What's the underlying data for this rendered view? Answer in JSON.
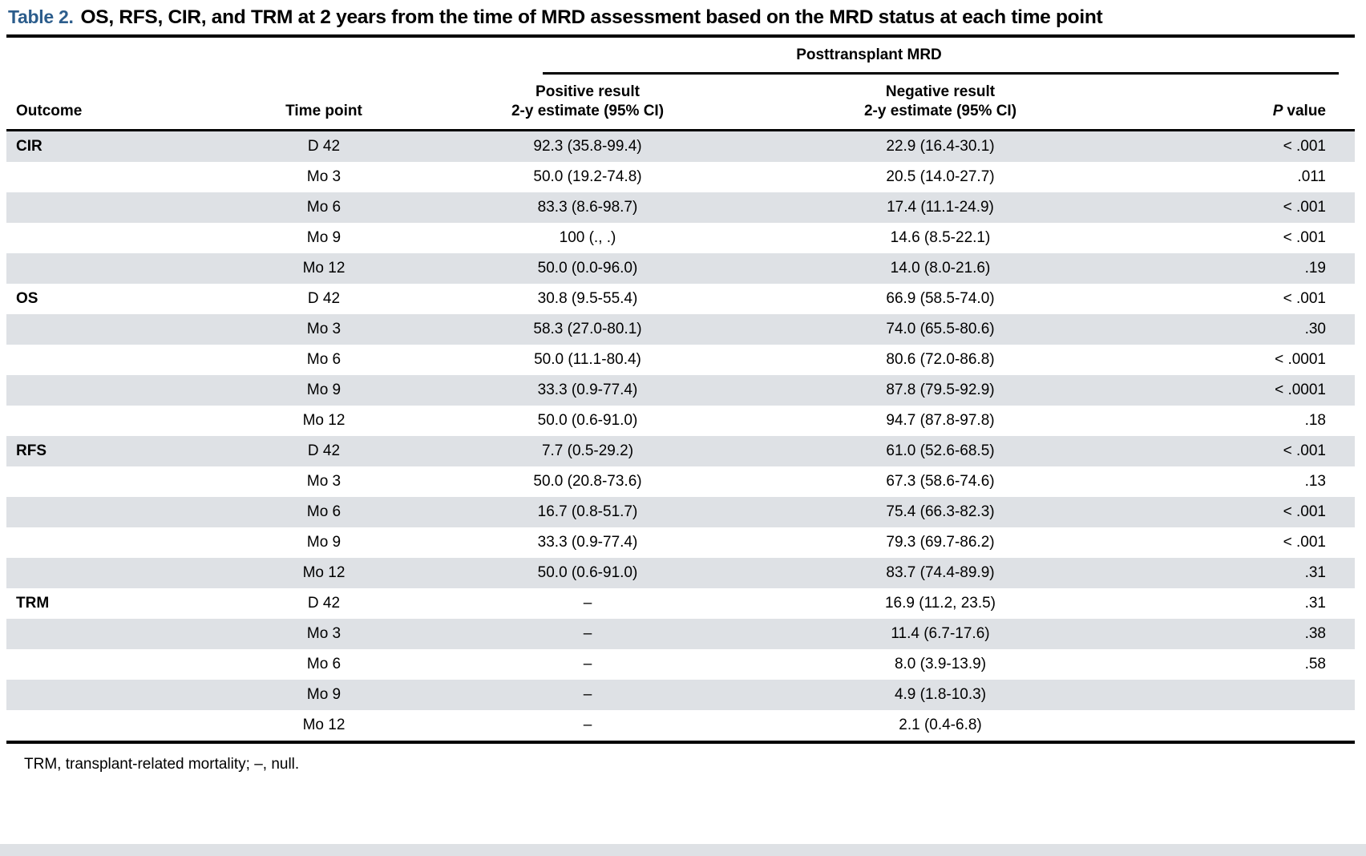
{
  "page": {
    "label": "Table 2.",
    "title": "OS, RFS, CIR, and TRM at 2 years from the time of MRD assessment based on the MRD status at each time point",
    "spanner": "Posttransplant MRD",
    "headers": {
      "outcome": "Outcome",
      "time_point": "Time point",
      "positive_line1": "Positive result",
      "positive_line2": "2-y estimate (95% CI)",
      "negative_line1": "Negative result",
      "negative_line2": "2-y estimate (95% CI)",
      "p_symbol": "P",
      "p_word": "value"
    },
    "rows": [
      {
        "outcome": "CIR",
        "time": "D 42",
        "positive": "92.3 (35.8-99.4)",
        "negative": "22.9 (16.4-30.1)",
        "p": "< .001"
      },
      {
        "outcome": "",
        "time": "Mo 3",
        "positive": "50.0 (19.2-74.8)",
        "negative": "20.5 (14.0-27.7)",
        "p": ".011"
      },
      {
        "outcome": "",
        "time": "Mo 6",
        "positive": "83.3 (8.6-98.7)",
        "negative": "17.4 (11.1-24.9)",
        "p": "< .001"
      },
      {
        "outcome": "",
        "time": "Mo 9",
        "positive": "100 (., .)",
        "negative": "14.6 (8.5-22.1)",
        "p": "< .001"
      },
      {
        "outcome": "",
        "time": "Mo 12",
        "positive": "50.0 (0.0-96.0)",
        "negative": "14.0 (8.0-21.6)",
        "p": ".19"
      },
      {
        "outcome": "OS",
        "time": "D 42",
        "positive": "30.8 (9.5-55.4)",
        "negative": "66.9 (58.5-74.0)",
        "p": "< .001"
      },
      {
        "outcome": "",
        "time": "Mo 3",
        "positive": "58.3 (27.0-80.1)",
        "negative": "74.0 (65.5-80.6)",
        "p": ".30"
      },
      {
        "outcome": "",
        "time": "Mo 6",
        "positive": "50.0 (11.1-80.4)",
        "negative": "80.6 (72.0-86.8)",
        "p": "< .0001"
      },
      {
        "outcome": "",
        "time": "Mo 9",
        "positive": "33.3 (0.9-77.4)",
        "negative": "87.8 (79.5-92.9)",
        "p": "< .0001"
      },
      {
        "outcome": "",
        "time": "Mo 12",
        "positive": "50.0 (0.6-91.0)",
        "negative": "94.7 (87.8-97.8)",
        "p": ".18"
      },
      {
        "outcome": "RFS",
        "time": "D 42",
        "positive": "7.7 (0.5-29.2)",
        "negative": "61.0 (52.6-68.5)",
        "p": "< .001"
      },
      {
        "outcome": "",
        "time": "Mo 3",
        "positive": "50.0 (20.8-73.6)",
        "negative": "67.3 (58.6-74.6)",
        "p": ".13"
      },
      {
        "outcome": "",
        "time": "Mo 6",
        "positive": "16.7 (0.8-51.7)",
        "negative": "75.4 (66.3-82.3)",
        "p": "< .001"
      },
      {
        "outcome": "",
        "time": "Mo 9",
        "positive": "33.3 (0.9-77.4)",
        "negative": "79.3 (69.7-86.2)",
        "p": "< .001"
      },
      {
        "outcome": "",
        "time": "Mo 12",
        "positive": "50.0 (0.6-91.0)",
        "negative": "83.7 (74.4-89.9)",
        "p": ".31"
      },
      {
        "outcome": "TRM",
        "time": "D 42",
        "positive": "–",
        "negative": "16.9 (11.2, 23.5)",
        "p": ".31"
      },
      {
        "outcome": "",
        "time": "Mo 3",
        "positive": "–",
        "negative": "11.4 (6.7-17.6)",
        "p": ".38"
      },
      {
        "outcome": "",
        "time": "Mo 6",
        "positive": "–",
        "negative": "8.0 (3.9-13.9)",
        "p": ".58"
      },
      {
        "outcome": "",
        "time": "Mo 9",
        "positive": "–",
        "negative": "4.9 (1.8-10.3)",
        "p": ""
      },
      {
        "outcome": "",
        "time": "Mo 12",
        "positive": "–",
        "negative": "2.1 (0.4-6.8)",
        "p": ""
      }
    ],
    "footnote": "TRM, transplant-related mortality; –, null.",
    "colors": {
      "table_label_blue": "#2c5d8c",
      "row_stripe": "#dee1e5",
      "rule_black": "#000000"
    }
  }
}
